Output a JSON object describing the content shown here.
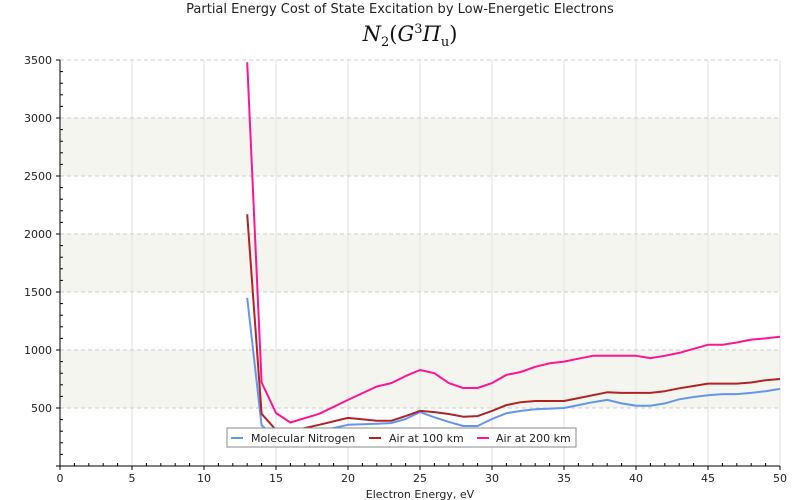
{
  "chart_data": {
    "type": "line",
    "title": "Partial Energy Cost of State Excitation by Low-Energetic Electrons",
    "subtitle": "N2(G3Πu)",
    "subtitle_parts": {
      "base": "N",
      "base_sub": "2",
      "state": "G",
      "state_sup": "3",
      "term": "Π",
      "term_sub": "u"
    },
    "xlabel": "Electron Energy, eV",
    "ylabel": "",
    "xlim": [
      0,
      50
    ],
    "ylim": [
      0,
      3500
    ],
    "xticks": [
      0,
      5,
      10,
      15,
      20,
      25,
      30,
      35,
      40,
      45,
      50
    ],
    "yticks": [
      500,
      1000,
      1500,
      2000,
      2500,
      3000,
      3500
    ],
    "grid": true,
    "legend_position": "bottom-center",
    "series": [
      {
        "name": "Molecular Nitrogen",
        "color": "#6495ed",
        "x": [
          13,
          14,
          15,
          16,
          18,
          20,
          22,
          23,
          24,
          25,
          26,
          27,
          28,
          29,
          30,
          31,
          32,
          33,
          34,
          35,
          36,
          37,
          38,
          39,
          40,
          41,
          42,
          43,
          44,
          45,
          46,
          47,
          48,
          49,
          50
        ],
        "values": [
          1450,
          350,
          250,
          240,
          300,
          355,
          365,
          370,
          405,
          465,
          420,
          380,
          345,
          345,
          405,
          455,
          475,
          490,
          495,
          500,
          525,
          550,
          570,
          540,
          520,
          520,
          540,
          575,
          595,
          610,
          620,
          620,
          630,
          645,
          665
        ]
      },
      {
        "name": "Air at 100 km",
        "color": "#b22222",
        "x": [
          13,
          14,
          15,
          16,
          18,
          20,
          22,
          23,
          24,
          25,
          26,
          27,
          28,
          29,
          30,
          31,
          32,
          33,
          34,
          35,
          36,
          37,
          38,
          39,
          40,
          41,
          42,
          43,
          44,
          45,
          46,
          47,
          48,
          49,
          50
        ],
        "values": [
          2170,
          450,
          310,
          300,
          355,
          415,
          390,
          390,
          430,
          475,
          465,
          448,
          425,
          430,
          475,
          525,
          550,
          560,
          560,
          560,
          585,
          610,
          635,
          630,
          630,
          630,
          645,
          670,
          690,
          710,
          710,
          710,
          720,
          740,
          750
        ]
      },
      {
        "name": "Air at 200 km",
        "color": "#ff1493",
        "x": [
          13,
          14,
          15,
          16,
          18,
          20,
          22,
          23,
          24,
          25,
          26,
          27,
          28,
          29,
          30,
          31,
          32,
          33,
          34,
          35,
          36,
          37,
          38,
          39,
          40,
          41,
          42,
          43,
          44,
          45,
          46,
          47,
          48,
          49,
          50
        ],
        "values": [
          3480,
          720,
          457,
          375,
          450,
          570,
          685,
          715,
          775,
          828,
          800,
          715,
          672,
          672,
          715,
          785,
          810,
          855,
          885,
          900,
          925,
          950,
          950,
          950,
          950,
          930,
          950,
          975,
          1010,
          1045,
          1045,
          1065,
          1090,
          1100,
          1115
        ]
      }
    ]
  }
}
